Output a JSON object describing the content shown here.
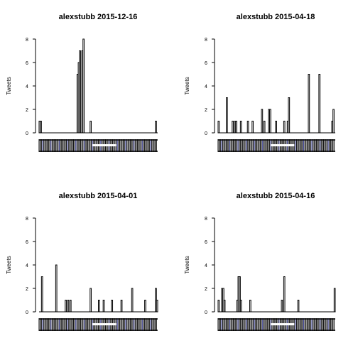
{
  "chart_data": [
    {
      "type": "bar",
      "title": "alexstubb 2015-12-16",
      "ylabel": "Tweets",
      "xlabel": "",
      "ylim": [
        0,
        8
      ],
      "yticks": [
        0,
        2,
        4,
        6,
        8
      ],
      "n_bins": 100,
      "bars": [
        {
          "i": 1,
          "v": 1
        },
        {
          "i": 2,
          "v": 1
        },
        {
          "i": 33,
          "v": 5
        },
        {
          "i": 34,
          "v": 6
        },
        {
          "i": 35,
          "v": 7
        },
        {
          "i": 37,
          "v": 7
        },
        {
          "i": 38,
          "v": 8
        },
        {
          "i": 44,
          "v": 1
        },
        {
          "i": 99,
          "v": 1
        }
      ]
    },
    {
      "type": "bar",
      "title": "alexstubb 2015-04-18",
      "ylabel": "Tweets",
      "xlabel": "",
      "ylim": [
        0,
        8
      ],
      "yticks": [
        0,
        2,
        4,
        6,
        8
      ],
      "n_bins": 100,
      "bars": [
        {
          "i": 1,
          "v": 1
        },
        {
          "i": 8,
          "v": 3
        },
        {
          "i": 13,
          "v": 1
        },
        {
          "i": 15,
          "v": 1
        },
        {
          "i": 16,
          "v": 1
        },
        {
          "i": 20,
          "v": 1
        },
        {
          "i": 26,
          "v": 1
        },
        {
          "i": 30,
          "v": 1
        },
        {
          "i": 38,
          "v": 2
        },
        {
          "i": 40,
          "v": 1
        },
        {
          "i": 44,
          "v": 2
        },
        {
          "i": 45,
          "v": 2
        },
        {
          "i": 50,
          "v": 1
        },
        {
          "i": 57,
          "v": 1
        },
        {
          "i": 60,
          "v": 1
        },
        {
          "i": 61,
          "v": 3
        },
        {
          "i": 78,
          "v": 5
        },
        {
          "i": 87,
          "v": 5
        },
        {
          "i": 98,
          "v": 1
        },
        {
          "i": 99,
          "v": 2
        }
      ]
    },
    {
      "type": "bar",
      "title": "alexstubb 2015-04-01",
      "ylabel": "Tweets",
      "xlabel": "",
      "ylim": [
        0,
        8
      ],
      "yticks": [
        0,
        2,
        4,
        6,
        8
      ],
      "n_bins": 100,
      "bars": [
        {
          "i": 3,
          "v": 3
        },
        {
          "i": 15,
          "v": 4
        },
        {
          "i": 23,
          "v": 1
        },
        {
          "i": 25,
          "v": 1
        },
        {
          "i": 27,
          "v": 1
        },
        {
          "i": 44,
          "v": 2
        },
        {
          "i": 51,
          "v": 1
        },
        {
          "i": 55,
          "v": 1
        },
        {
          "i": 62,
          "v": 1
        },
        {
          "i": 70,
          "v": 1
        },
        {
          "i": 79,
          "v": 2
        },
        {
          "i": 90,
          "v": 1
        },
        {
          "i": 99,
          "v": 2
        },
        {
          "i": 100,
          "v": 1
        }
      ]
    },
    {
      "type": "bar",
      "title": "alexstubb 2015-04-16",
      "ylabel": "Tweets",
      "xlabel": "",
      "ylim": [
        0,
        8
      ],
      "yticks": [
        0,
        2,
        4,
        6,
        8
      ],
      "n_bins": 100,
      "bars": [
        {
          "i": 1,
          "v": 1
        },
        {
          "i": 4,
          "v": 2
        },
        {
          "i": 5,
          "v": 2
        },
        {
          "i": 6,
          "v": 1
        },
        {
          "i": 17,
          "v": 1
        },
        {
          "i": 18,
          "v": 3
        },
        {
          "i": 19,
          "v": 3
        },
        {
          "i": 20,
          "v": 1
        },
        {
          "i": 28,
          "v": 1
        },
        {
          "i": 55,
          "v": 1
        },
        {
          "i": 57,
          "v": 3
        },
        {
          "i": 69,
          "v": 1
        },
        {
          "i": 100,
          "v": 2
        }
      ]
    }
  ]
}
